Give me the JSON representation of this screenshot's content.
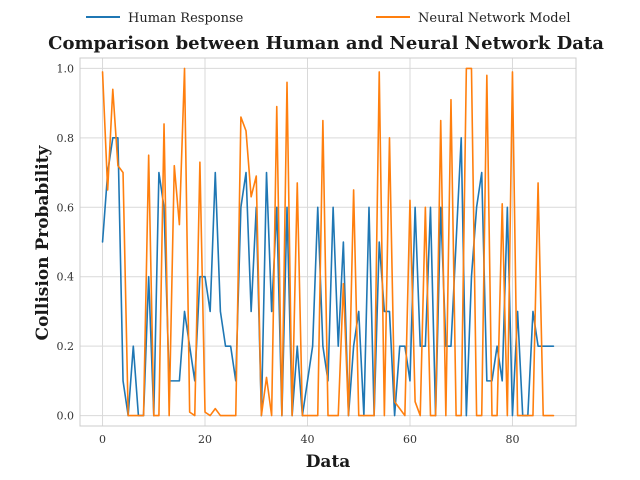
{
  "chart_data": {
    "type": "line",
    "title": "Comparison between Human and Neural Network Data",
    "xlabel": "Data",
    "ylabel": "Collision Probability",
    "xlim": [
      -4.4,
      92.4
    ],
    "ylim": [
      -0.03,
      1.03
    ],
    "xticks": [
      0,
      20,
      40,
      60,
      80
    ],
    "yticks": [
      0.0,
      0.2,
      0.4,
      0.6,
      0.8,
      1.0
    ],
    "xtick_labels": [
      "0",
      "20",
      "40",
      "60",
      "80"
    ],
    "ytick_labels": [
      "0.0",
      "0.2",
      "0.4",
      "0.6",
      "0.8",
      "1.0"
    ],
    "grid": true,
    "legend_position": "top",
    "series": [
      {
        "name": "Human Response",
        "color": "#1f77b4",
        "values": [
          0.5,
          0.7,
          0.8,
          0.8,
          0.1,
          0.0,
          0.2,
          0.0,
          0.0,
          0.4,
          0.0,
          0.7,
          0.6,
          0.1,
          0.1,
          0.1,
          0.3,
          0.2,
          0.1,
          0.4,
          0.4,
          0.3,
          0.7,
          0.3,
          0.2,
          0.2,
          0.1,
          0.6,
          0.7,
          0.3,
          0.6,
          0.0,
          0.7,
          0.3,
          0.6,
          0.0,
          0.6,
          0.0,
          0.2,
          0.0,
          0.1,
          0.2,
          0.6,
          0.2,
          0.1,
          0.6,
          0.2,
          0.5,
          0.0,
          0.2,
          0.3,
          0.0,
          0.6,
          0.0,
          0.5,
          0.3,
          0.3,
          0.0,
          0.2,
          0.2,
          0.1,
          0.6,
          0.2,
          0.2,
          0.6,
          0.0,
          0.6,
          0.2,
          0.2,
          0.5,
          0.8,
          0.0,
          0.4,
          0.6,
          0.7,
          0.1,
          0.1,
          0.2,
          0.1,
          0.6,
          0.0,
          0.3,
          0.0,
          0.0,
          0.3,
          0.2,
          0.2,
          0.2,
          0.2
        ]
      },
      {
        "name": "Neural Network Model",
        "color": "#ff7f0e",
        "values": [
          0.99,
          0.65,
          0.94,
          0.72,
          0.7,
          0.0,
          0.0,
          0.0,
          0.0,
          0.75,
          0.0,
          0.0,
          0.84,
          0.0,
          0.72,
          0.55,
          1.0,
          0.01,
          0.0,
          0.73,
          0.01,
          0.0,
          0.02,
          0.0,
          0.0,
          0.0,
          0.0,
          0.86,
          0.82,
          0.63,
          0.69,
          0.0,
          0.11,
          0.0,
          0.89,
          0.0,
          0.96,
          0.0,
          0.67,
          0.0,
          0.0,
          0.0,
          0.0,
          0.85,
          0.0,
          0.0,
          0.0,
          0.38,
          0.0,
          0.65,
          0.0,
          0.0,
          0.0,
          0.0,
          0.99,
          0.0,
          0.8,
          0.04,
          0.02,
          0.0,
          0.62,
          0.04,
          0.0,
          0.6,
          0.0,
          0.0,
          0.85,
          0.0,
          0.91,
          0.0,
          0.0,
          1.0,
          1.0,
          0.0,
          0.0,
          0.98,
          0.0,
          0.0,
          0.61,
          0.0,
          0.99,
          0.0,
          0.0,
          0.0,
          0.0,
          0.67,
          0.0,
          0.0,
          0.0
        ]
      }
    ]
  }
}
